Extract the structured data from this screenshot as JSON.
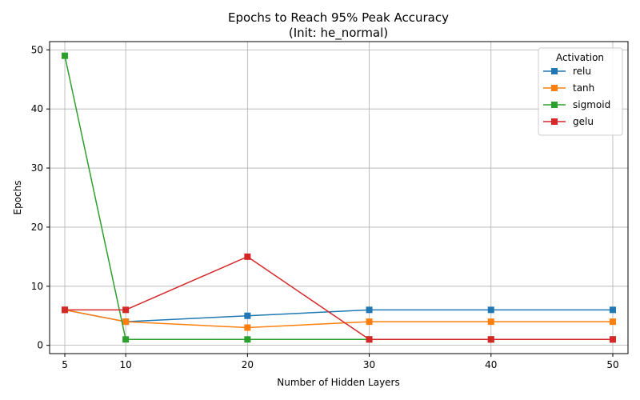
{
  "chart_data": {
    "type": "line",
    "title": "Epochs to Reach 95% Peak Accuracy",
    "subtitle": "(Init: he_normal)",
    "xlabel": "Number of Hidden Layers",
    "ylabel": "Epochs",
    "x": [
      5,
      10,
      20,
      30,
      40,
      50
    ],
    "xticks": [
      5,
      10,
      20,
      30,
      40,
      50
    ],
    "yticks": [
      0,
      10,
      20,
      30,
      40,
      50
    ],
    "xlim": [
      3.75,
      51.25
    ],
    "ylim": [
      -1.4,
      51.4
    ],
    "grid": true,
    "legend": {
      "title": "Activation",
      "placement": "upper-right"
    },
    "series": [
      {
        "name": "relu",
        "color": "#1f77b4",
        "values": [
          6,
          4,
          5,
          6,
          6,
          6
        ]
      },
      {
        "name": "tanh",
        "color": "#ff7f0e",
        "values": [
          6,
          4,
          3,
          4,
          4,
          4
        ]
      },
      {
        "name": "sigmoid",
        "color": "#2ca02c",
        "values": [
          49,
          1,
          1,
          1,
          1,
          1
        ]
      },
      {
        "name": "gelu",
        "color": "#d62728",
        "values": [
          6,
          6,
          15,
          1,
          1,
          1
        ]
      }
    ]
  }
}
